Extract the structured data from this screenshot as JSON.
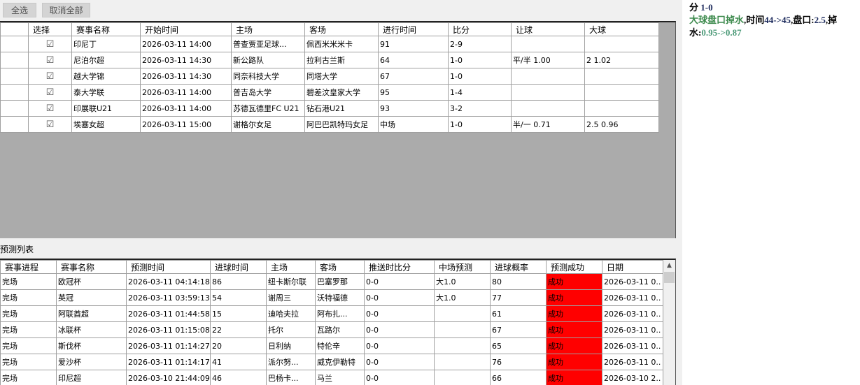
{
  "toolbar": {
    "select_all": "全选",
    "deselect_all": "取消全部"
  },
  "matches": {
    "columns": [
      "",
      "选择",
      "赛事名称",
      "开始时间",
      "主场",
      "客场",
      "进行时间",
      "比分",
      "让球",
      "大球"
    ],
    "rows": [
      [
        "印尼丁",
        "2026-03-11 14:00",
        "普查贾亚足球...",
        "佩西米米米卡",
        "91",
        "2-9",
        "",
        ""
      ],
      [
        "尼泊尔超",
        "2026-03-11 14:30",
        "新公路队",
        "拉利古兰斯",
        "64",
        "1-0",
        "平/半 1.00",
        "2 1.02"
      ],
      [
        "越大学锦",
        "2026-03-11 14:30",
        "同奈科技大学",
        "同塔大学",
        "67",
        "1-0",
        "",
        ""
      ],
      [
        "泰大学联",
        "2026-03-11 14:00",
        "普吉岛大学",
        "碧差汶皇家大学",
        "95",
        "1-4",
        "",
        ""
      ],
      [
        "印展联U21",
        "2026-03-11 14:00",
        "苏德瓦德里FC U21",
        "钻石港U21",
        "93",
        "3-2",
        "",
        ""
      ],
      [
        "埃塞女超",
        "2026-03-11 15:00",
        "谢格尔女足",
        "阿巴巴凯特玛女足",
        "中场",
        "1-0",
        "半/一 0.71",
        "2.5 0.96"
      ]
    ]
  },
  "predictions": {
    "title": "预测列表",
    "columns": [
      "赛事进程",
      "赛事名称",
      "预测时间",
      "进球时间",
      "主场",
      "客场",
      "推送时比分",
      "中场预测",
      "进球概率",
      "预测成功",
      "日期"
    ],
    "rows": [
      [
        "完场",
        "欧冠杯",
        "2026-03-11 04:14:18",
        "86",
        "纽卡斯尔联",
        "巴塞罗那",
        "0-0",
        "大1.0",
        "80",
        "成功",
        "2026-03-11 0.."
      ],
      [
        "完场",
        "英冠",
        "2026-03-11 03:59:13",
        "54",
        "谢周三",
        "沃特福德",
        "0-0",
        "大1.0",
        "77",
        "成功",
        "2026-03-11 0.."
      ],
      [
        "完场",
        "阿联酋超",
        "2026-03-11 01:44:58",
        "15",
        "迪哈夫拉",
        "阿布扎...",
        "0-0",
        "",
        "61",
        "成功",
        "2026-03-11 0.."
      ],
      [
        "完场",
        "冰联杯",
        "2026-03-11 01:15:08",
        "22",
        "托尔",
        "瓦路尔",
        "0-0",
        "",
        "67",
        "成功",
        "2026-03-11 0.."
      ],
      [
        "完场",
        "斯伐杯",
        "2026-03-11 01:14:27",
        "20",
        "日利纳",
        "特伦辛",
        "0-0",
        "",
        "65",
        "成功",
        "2026-03-11 0.."
      ],
      [
        "完场",
        "爱沙杯",
        "2026-03-11 01:14:17",
        "41",
        "派尔努...",
        "威克伊勒特",
        "0-0",
        "",
        "76",
        "成功",
        "2026-03-11 0.."
      ],
      [
        "完场",
        "印尼超",
        "2026-03-10 21:44:09",
        "46",
        "巴杨卡...",
        "马兰",
        "0-0",
        "",
        "66",
        "成功",
        "2026-03-10 2.."
      ]
    ]
  },
  "panel": {
    "l1a": "分 ",
    "l1b": "1-0",
    "l2a": "大球盘口掉水",
    "l2b": ",时间",
    "l2c": "44->45",
    "l2d": ",盘口:",
    "l2e": "2.5",
    "l2f": ",掉",
    "l3a": "水:",
    "l3b": "0.95->0.87"
  },
  "colors": {
    "success": "#ff0000",
    "green": "#3d8a4d"
  }
}
